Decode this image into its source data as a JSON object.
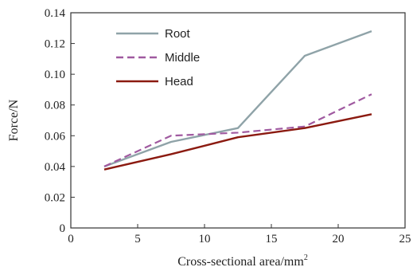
{
  "chart_data": {
    "type": "line",
    "title": "",
    "xlabel": "Cross-sectional area/mm",
    "xlabel_sup": "2",
    "ylabel": "Force/N",
    "xlim": [
      0,
      25
    ],
    "ylim": [
      0,
      0.14
    ],
    "xticks": [
      "0",
      "5",
      "10",
      "15",
      "20",
      "25"
    ],
    "yticks": [
      "0",
      "0.02",
      "0.04",
      "0.06",
      "0.08",
      "0.10",
      "0.12",
      "0.14"
    ],
    "x": [
      2.5,
      7.5,
      12.5,
      17.5,
      22.5
    ],
    "grid": false,
    "legend_position": "top-left",
    "series": [
      {
        "name": "Root",
        "values": [
          0.04,
          0.056,
          0.065,
          0.112,
          0.128
        ],
        "color": "#8fa3a8",
        "style": "solid"
      },
      {
        "name": "Middle",
        "values": [
          0.04,
          0.06,
          0.062,
          0.066,
          0.087
        ],
        "color": "#a05aa0",
        "style": "dashed"
      },
      {
        "name": "Head",
        "values": [
          0.038,
          0.048,
          0.059,
          0.065,
          0.074
        ],
        "color": "#8b1a10",
        "style": "solid"
      }
    ]
  }
}
